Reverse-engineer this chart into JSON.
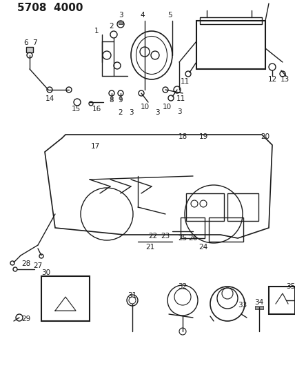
{
  "title": "5708  4000",
  "bg_color": "#ffffff",
  "line_color": "#1a1a1a",
  "text_color": "#1a1a1a",
  "title_fontsize": 11,
  "label_fontsize": 7.5,
  "figsize": [
    4.28,
    5.33
  ],
  "dpi": 100
}
